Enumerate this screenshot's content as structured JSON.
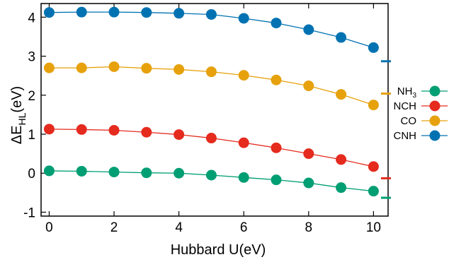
{
  "chart_data": {
    "type": "line",
    "xlabel": "Hubbard U(eV)",
    "ylabel_main": "ΔE",
    "ylabel_sub": "HL",
    "ylabel_tail": "(eV)",
    "xlim": [
      0,
      10
    ],
    "ylim": [
      -1,
      4.3
    ],
    "xticks": [
      0,
      2,
      4,
      6,
      8,
      10
    ],
    "yticks": [
      -1,
      0,
      1,
      2,
      3,
      4
    ],
    "grid": false,
    "legend_position": "right",
    "x": [
      0,
      1,
      2,
      3,
      4,
      5,
      6,
      7,
      8,
      9,
      10
    ],
    "series": [
      {
        "name": "NH3",
        "name_main": "NH",
        "name_sub": "3",
        "color": "#009e73",
        "values": [
          0.06,
          0.05,
          0.03,
          0.01,
          0.0,
          -0.05,
          -0.11,
          -0.17,
          -0.25,
          -0.37,
          -0.46
        ],
        "reference": -0.63
      },
      {
        "name": "NCH",
        "name_main": "NCH",
        "name_sub": "",
        "color": "#e52a1e",
        "values": [
          1.13,
          1.12,
          1.1,
          1.05,
          0.99,
          0.9,
          0.78,
          0.65,
          0.5,
          0.35,
          0.17
        ],
        "reference": -0.13
      },
      {
        "name": "CO",
        "name_main": "CO",
        "name_sub": "",
        "color": "#e6a10c",
        "values": [
          2.7,
          2.7,
          2.73,
          2.69,
          2.66,
          2.6,
          2.51,
          2.39,
          2.24,
          2.02,
          1.75
        ],
        "reference": 2.04
      },
      {
        "name": "CNH",
        "name_main": "CNH",
        "name_sub": "",
        "color": "#0072b2",
        "values": [
          4.12,
          4.13,
          4.13,
          4.12,
          4.1,
          4.07,
          3.97,
          3.85,
          3.68,
          3.48,
          3.22
        ],
        "reference": 2.87
      }
    ]
  }
}
